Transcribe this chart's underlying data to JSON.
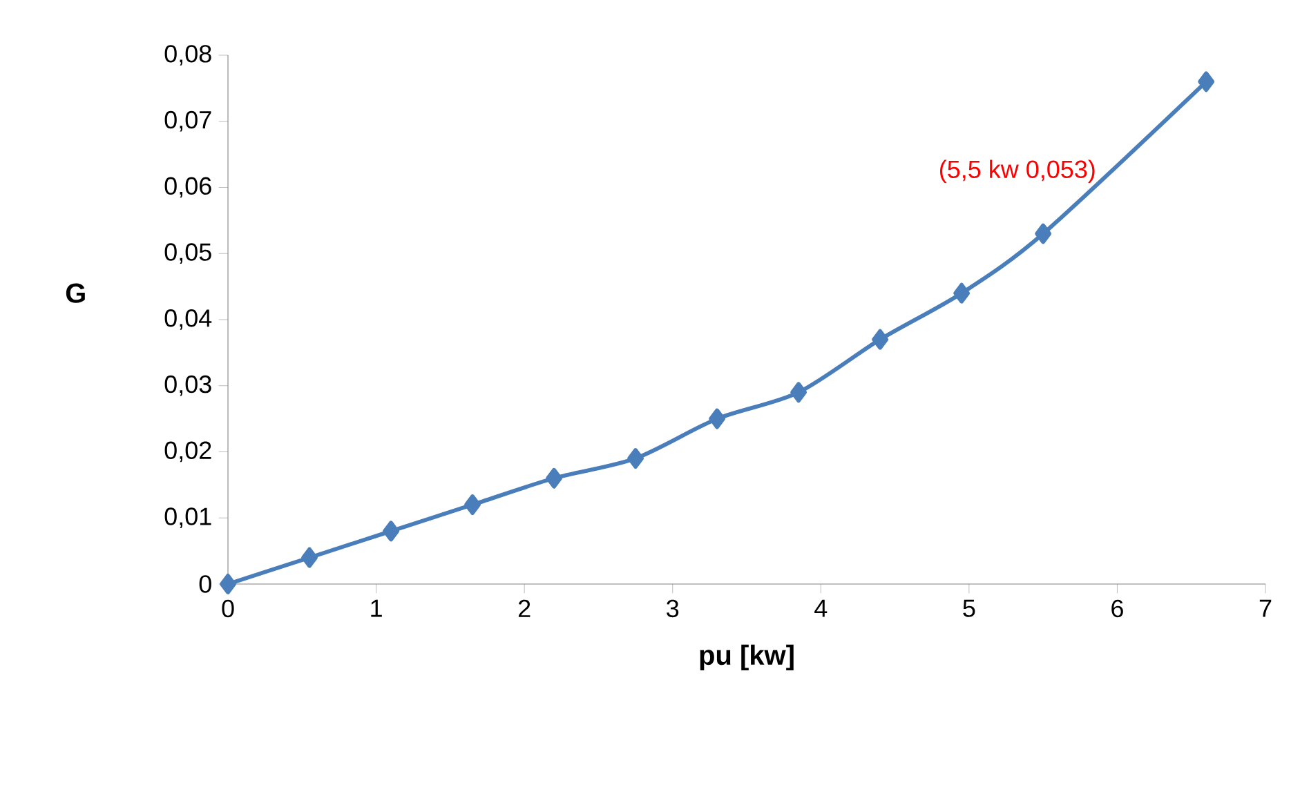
{
  "chart_data": {
    "type": "line",
    "xlabel": "pu [kw]",
    "ylabel": "G",
    "x": [
      0,
      0.55,
      1.1,
      1.65,
      2.2,
      2.75,
      3.3,
      3.85,
      4.4,
      4.95,
      5.5,
      6.6
    ],
    "series": [
      {
        "color": "#4a7ebb",
        "values": [
          0,
          0.004,
          0.008,
          0.012,
          0.016,
          0.019,
          0.025,
          0.029,
          0.037,
          0.044,
          0.053,
          0.076
        ]
      }
    ],
    "xlim": [
      0,
      7
    ],
    "xticks": [
      0,
      1,
      2,
      3,
      4,
      5,
      6,
      7
    ],
    "ylim": [
      0,
      0.08
    ],
    "yticks": [
      0,
      {
        "value": 0.01,
        "label": "0,01"
      },
      {
        "value": 0.02,
        "label": "0,02"
      },
      {
        "value": 0.03,
        "label": "0,03"
      },
      {
        "value": 0.04,
        "label": "0,04"
      },
      {
        "value": 0.05,
        "label": "0,05"
      },
      {
        "value": 0.06,
        "label": "0,06"
      },
      {
        "value": 0.07,
        "label": "0,07"
      },
      {
        "value": 0.08,
        "label": "0,08"
      }
    ],
    "annotations": [
      {
        "text": "(5,5 kw 0,053)",
        "x": 5.5,
        "y": 0.053
      }
    ],
    "grid": false,
    "marker": "diamond",
    "line_style": "solid"
  }
}
